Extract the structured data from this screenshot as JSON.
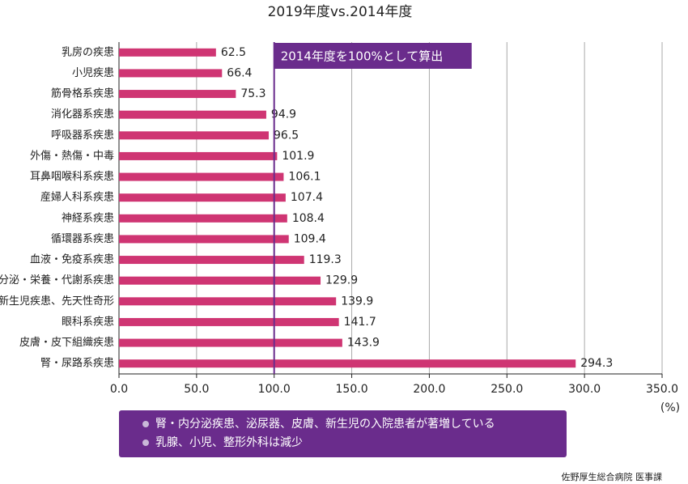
{
  "chart_data": {
    "type": "bar",
    "orientation": "horizontal",
    "title": "2019年度vs.2014年度",
    "categories": [
      "乳房の疾患",
      "小児疾患",
      "筋骨格系疾患",
      "消化器系疾患",
      "呼吸器系疾患",
      "外傷・熱傷・中毒",
      "耳鼻咽喉科系疾患",
      "産婦人科系疾患",
      "神経系疾患",
      "循環器系疾患",
      "血液・免疫系疾患",
      "内分泌・栄養・代謝系疾患",
      "新生児疾患、先天性奇形",
      "眼科系疾患",
      "皮膚・皮下組織疾患",
      "腎・尿路系疾患"
    ],
    "values": [
      62.5,
      66.4,
      75.3,
      94.9,
      96.5,
      101.9,
      106.1,
      107.4,
      108.4,
      109.4,
      119.3,
      129.9,
      139.9,
      141.7,
      143.9,
      294.3
    ],
    "color": "#cf3573",
    "xlim": [
      0,
      350
    ],
    "xticks": [
      {
        "value": 0,
        "label": "0.0"
      },
      {
        "value": 50,
        "label": "50.0"
      },
      {
        "value": 100,
        "label": "100.0"
      },
      {
        "value": 150,
        "label": "150.0"
      },
      {
        "value": 200,
        "label": "200.0"
      },
      {
        "value": 250,
        "label": "250.0"
      },
      {
        "value": 300,
        "label": "300.0"
      },
      {
        "value": 350,
        "label": "350.0"
      }
    ],
    "x_unit": "(%)",
    "grid": true,
    "reference_line": {
      "value": 100,
      "label": "2014年度を100%として算出",
      "color": "#6a2c8c"
    },
    "notes": [
      "腎・内分泌疾患、泌尿器、皮膚、新生児の入院患者が著増している",
      "乳腺、小児、整形外科は減少"
    ],
    "source": "佐野厚生総合病院 医事課"
  }
}
